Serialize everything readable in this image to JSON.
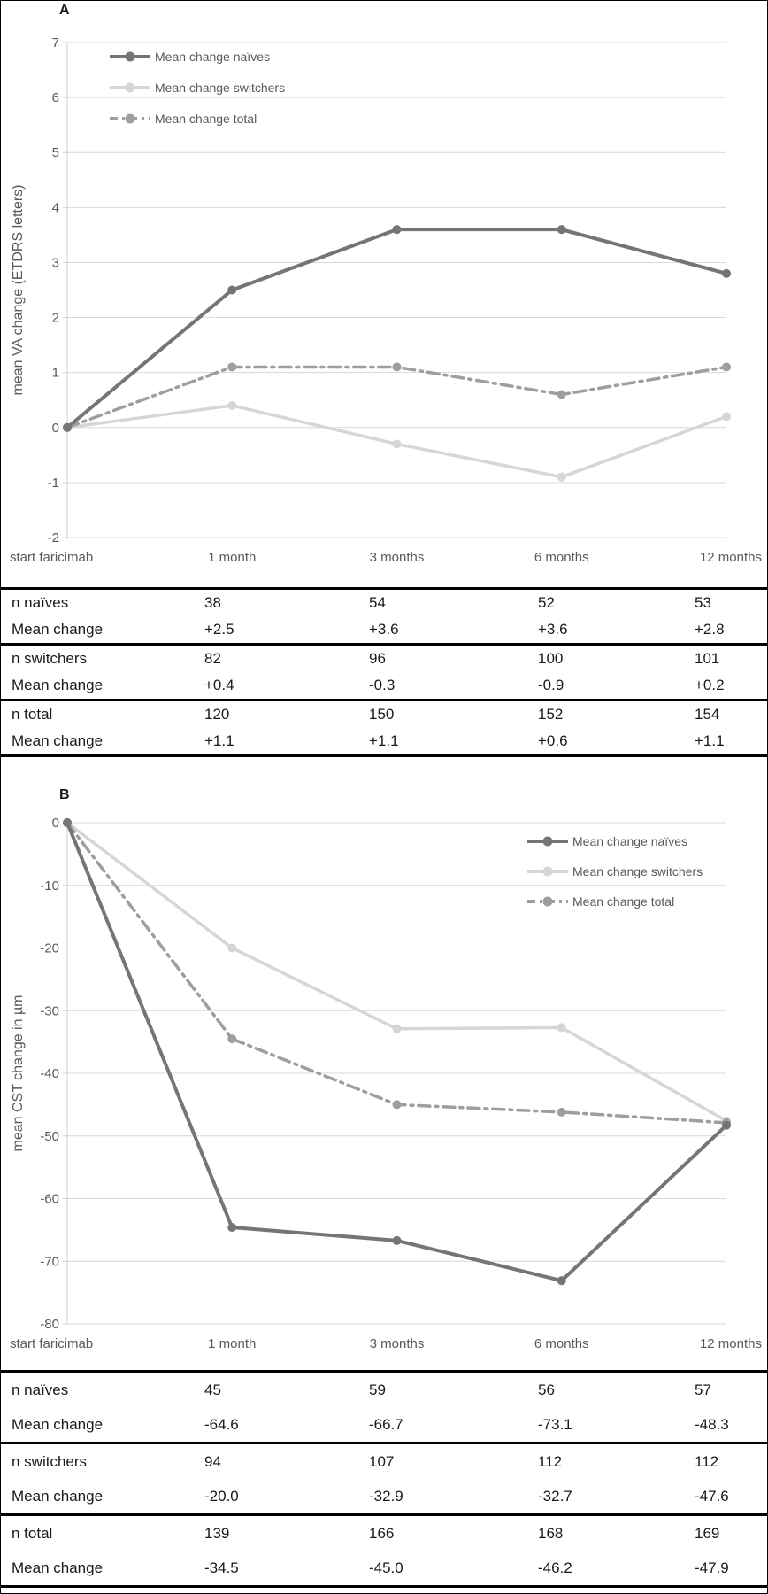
{
  "figure": {
    "panel_a_label": "A",
    "panel_b_label": "B"
  },
  "colors": {
    "naives": "#757575",
    "switchers": "#d6d6d6",
    "total": "#9e9e9e",
    "gridline": "#d9d9d9",
    "axis_line": "#cfcfcf",
    "axis_text": "#595959",
    "legend_text": "#595959",
    "table_text": "#1a1a1a",
    "table_border": "#000000"
  },
  "chart_data": [
    {
      "type": "line",
      "panel": "A",
      "categories": [
        "start faricimab",
        "1 month",
        "3 months",
        "6 months",
        "12 months"
      ],
      "xlabel": "",
      "ylabel": "mean VA change (ETDRS letters)",
      "ylim": [
        -2,
        7
      ],
      "yticks": [
        7,
        6,
        5,
        4,
        3,
        2,
        1,
        0,
        -1,
        -2
      ],
      "grid": true,
      "legend_position": "top-left",
      "series": [
        {
          "name": "Mean change naïves",
          "values": [
            0,
            2.5,
            3.6,
            3.6,
            2.8
          ],
          "color_key": "naives",
          "style": "solid"
        },
        {
          "name": "Mean change switchers",
          "values": [
            0,
            0.4,
            -0.3,
            -0.9,
            0.2
          ],
          "color_key": "switchers",
          "style": "solid"
        },
        {
          "name": "Mean change total",
          "values": [
            0,
            1.1,
            1.1,
            0.6,
            1.1
          ],
          "color_key": "total",
          "style": "dashdot"
        }
      ]
    },
    {
      "type": "line",
      "panel": "B",
      "categories": [
        "start faricimab",
        "1 month",
        "3 months",
        "6 months",
        "12 months"
      ],
      "xlabel": "",
      "ylabel": "mean CST change in µm",
      "ylim": [
        -80,
        0
      ],
      "yticks": [
        0,
        -10,
        -20,
        -30,
        -40,
        -50,
        -60,
        -70,
        -80
      ],
      "grid": true,
      "legend_position": "top-right",
      "series": [
        {
          "name": "Mean change naïves",
          "values": [
            0,
            -64.6,
            -66.7,
            -73.1,
            -48.3
          ],
          "color_key": "naives",
          "style": "solid"
        },
        {
          "name": "Mean change switchers",
          "values": [
            0,
            -20.0,
            -32.9,
            -32.7,
            -47.6
          ],
          "color_key": "switchers",
          "style": "solid"
        },
        {
          "name": "Mean change total",
          "values": [
            0,
            -34.5,
            -45.0,
            -46.2,
            -47.9
          ],
          "color_key": "total",
          "style": "dashdot"
        }
      ]
    }
  ],
  "tables": [
    {
      "panel": "A",
      "rows": [
        {
          "label": "n naïves",
          "values": [
            "38",
            "54",
            "52",
            "53"
          ],
          "group_end": false
        },
        {
          "label": "Mean change",
          "values": [
            "+2.5",
            "+3.6",
            "+3.6",
            "+2.8"
          ],
          "group_end": true
        },
        {
          "label": "n switchers",
          "values": [
            "82",
            "96",
            "100",
            "101"
          ],
          "group_end": false
        },
        {
          "label": "Mean change",
          "values": [
            "+0.4",
            "-0.3",
            "-0.9",
            "+0.2"
          ],
          "group_end": true
        },
        {
          "label": "n total",
          "values": [
            "120",
            "150",
            "152",
            "154"
          ],
          "group_end": false
        },
        {
          "label": "Mean change",
          "values": [
            "+1.1",
            "+1.1",
            "+0.6",
            "+1.1"
          ],
          "group_end": true
        }
      ]
    },
    {
      "panel": "B",
      "rows": [
        {
          "label": "n naïves",
          "values": [
            "45",
            "59",
            "56",
            "57"
          ],
          "group_end": false
        },
        {
          "label": "Mean change",
          "values": [
            "-64.6",
            "-66.7",
            "-73.1",
            "-48.3"
          ],
          "group_end": true
        },
        {
          "label": "n switchers",
          "values": [
            "94",
            "107",
            "112",
            "112"
          ],
          "group_end": false
        },
        {
          "label": "Mean change",
          "values": [
            "-20.0",
            "-32.9",
            "-32.7",
            "-47.6"
          ],
          "group_end": true
        },
        {
          "label": "n total",
          "values": [
            "139",
            "166",
            "168",
            "169"
          ],
          "group_end": false
        },
        {
          "label": "Mean change",
          "values": [
            "-34.5",
            "-45.0",
            "-46.2",
            "-47.9"
          ],
          "group_end": true
        }
      ]
    }
  ]
}
